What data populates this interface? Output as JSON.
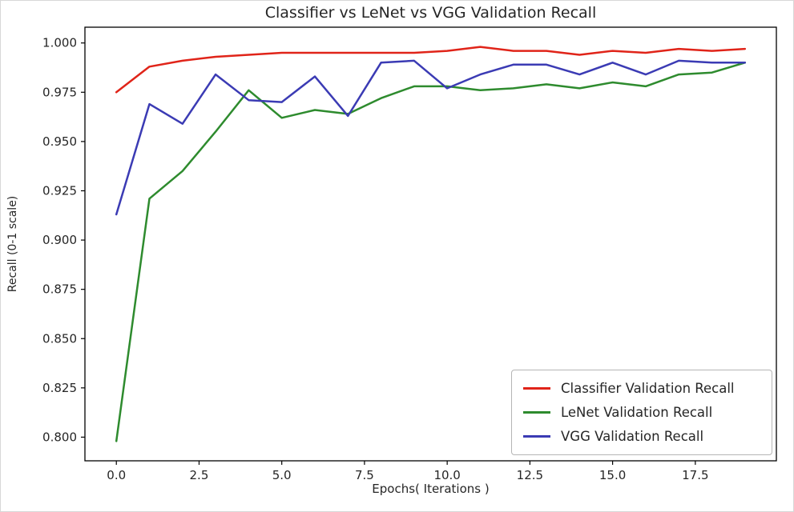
{
  "chart_data": {
    "type": "line",
    "title": "Classifier vs LeNet vs VGG Validation Recall",
    "xlabel": "Epochs( Iterations )",
    "ylabel": "Recall (0-1 scale)",
    "x": [
      0,
      1,
      2,
      3,
      4,
      5,
      6,
      7,
      8,
      9,
      10,
      11,
      12,
      13,
      14,
      15,
      16,
      17,
      18,
      19
    ],
    "series": [
      {
        "name": "Classifier Validation Recall",
        "color": "#e02419",
        "values": [
          0.975,
          0.988,
          0.991,
          0.993,
          0.994,
          0.995,
          0.995,
          0.995,
          0.995,
          0.995,
          0.996,
          0.998,
          0.996,
          0.996,
          0.994,
          0.996,
          0.995,
          0.997,
          0.996,
          0.997
        ]
      },
      {
        "name": "LeNet Validation Recall",
        "color": "#2e8b2e",
        "values": [
          0.798,
          0.921,
          0.935,
          0.955,
          0.976,
          0.962,
          0.966,
          0.964,
          0.972,
          0.978,
          0.978,
          0.976,
          0.977,
          0.979,
          0.977,
          0.98,
          0.978,
          0.984,
          0.985,
          0.99
        ]
      },
      {
        "name": "VGG Validation Recall",
        "color": "#3b3bb4",
        "values": [
          0.913,
          0.969,
          0.959,
          0.984,
          0.971,
          0.97,
          0.983,
          0.963,
          0.99,
          0.991,
          0.977,
          0.984,
          0.989,
          0.989,
          0.984,
          0.99,
          0.984,
          0.991,
          0.99,
          0.99
        ]
      }
    ],
    "xticks": {
      "values": [
        0,
        2.5,
        5,
        7.5,
        10,
        12.5,
        15,
        17.5
      ],
      "labels": [
        "0.0",
        "2.5",
        "5.0",
        "7.5",
        "10.0",
        "12.5",
        "15.0",
        "17.5"
      ]
    },
    "yticks": {
      "values": [
        0.8,
        0.825,
        0.85,
        0.875,
        0.9,
        0.925,
        0.95,
        0.975,
        1.0
      ],
      "labels": [
        "0.800",
        "0.825",
        "0.850",
        "0.875",
        "0.900",
        "0.925",
        "0.950",
        "0.975",
        "1.000"
      ]
    },
    "xlim": [
      -0.95,
      19.95
    ],
    "ylim": [
      0.788,
      1.008
    ],
    "grid": false,
    "legend_position": "lower right"
  }
}
